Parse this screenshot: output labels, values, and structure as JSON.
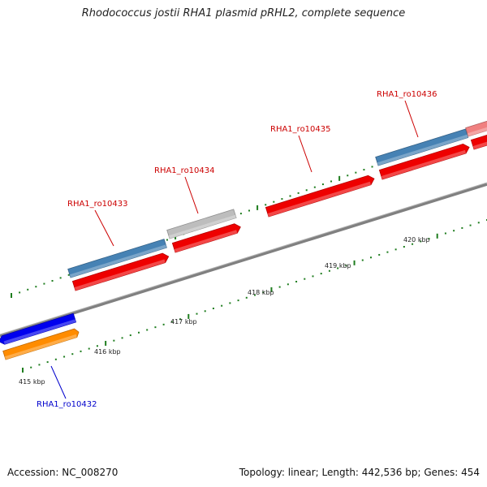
{
  "title": "Rhodococcus jostii RHA1 plasmid pRHL2, complete sequence",
  "accession": "Accession: NC_008270",
  "topology": "Topology: linear; Length: 442,536 bp; Genes: 454",
  "scale": {
    "major_ticks": [
      "415 kbp",
      "416 kbp",
      "417 kbp",
      "418 kbp",
      "419 kbp",
      "420 kbp"
    ],
    "tick_color": "#1e7d1e"
  },
  "backbone_color": "#808080",
  "gene_labels": [
    {
      "text": "RHA1_ro10432",
      "color": "#0000cc"
    },
    {
      "text": "RHA1_ro10433",
      "color": "#cc0000"
    },
    {
      "text": "RHA1_ro10434",
      "color": "#cc0000"
    },
    {
      "text": "RHA1_ro10435",
      "color": "#cc0000"
    },
    {
      "text": "RHA1_ro10436",
      "color": "#cc0000"
    }
  ],
  "features": [
    {
      "type": "gene",
      "strand": "-",
      "color": "#0000ee"
    },
    {
      "type": "CDS",
      "strand": "+",
      "color": "#ff8c00"
    },
    {
      "type": "gene",
      "strand": "+",
      "color": "#4682b4"
    },
    {
      "type": "CDS",
      "strand": "+",
      "color": "#ee0000"
    },
    {
      "type": "gene",
      "strand": "+",
      "color": "#bdbdbd"
    },
    {
      "type": "CDS",
      "strand": "+",
      "color": "#ee0000"
    },
    {
      "type": "CDS",
      "strand": "+",
      "color": "#ee0000"
    },
    {
      "type": "gene",
      "strand": "+",
      "color": "#4682b4"
    },
    {
      "type": "CDS",
      "strand": "+",
      "color": "#ee0000"
    },
    {
      "type": "gene",
      "strand": "+",
      "color": "#f08080"
    },
    {
      "type": "CDS",
      "strand": "+",
      "color": "#ee0000"
    }
  ]
}
